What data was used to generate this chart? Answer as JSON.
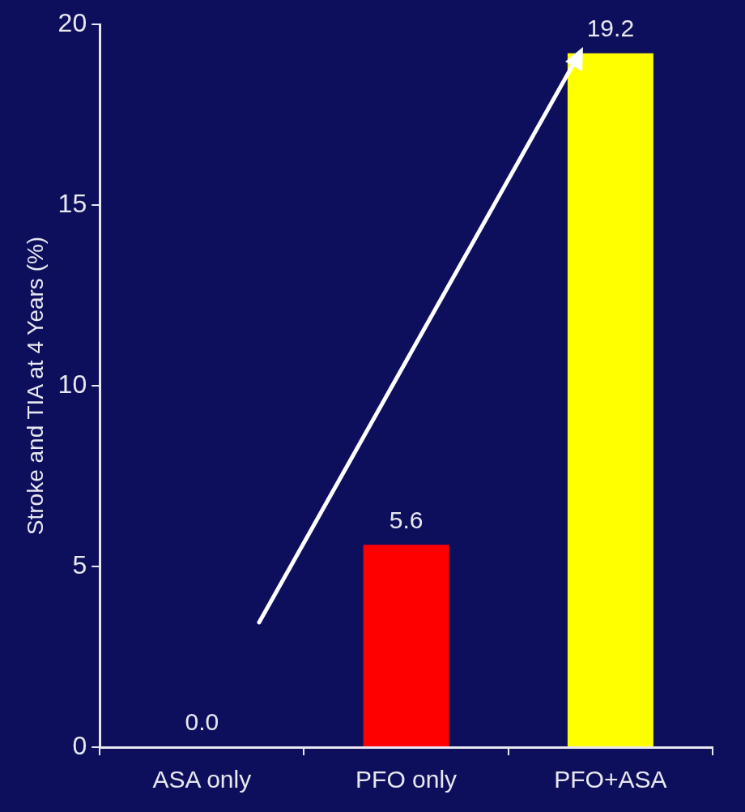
{
  "chart_data": {
    "type": "bar",
    "ylabel": "Stroke and TIA at 4 Years (%)",
    "categories": [
      "ASA only",
      "PFO only",
      "PFO+ASA"
    ],
    "values": [
      0,
      5.6,
      19.2
    ],
    "colors": [
      "#ff0000",
      "#ff0000",
      "#ffff00"
    ],
    "value_labels": [
      "0.0",
      "5.6",
      "19.2"
    ],
    "ylim": [
      0,
      20
    ],
    "yticks": [
      0,
      5,
      10,
      15,
      20
    ],
    "grid": false,
    "legend": false
  }
}
